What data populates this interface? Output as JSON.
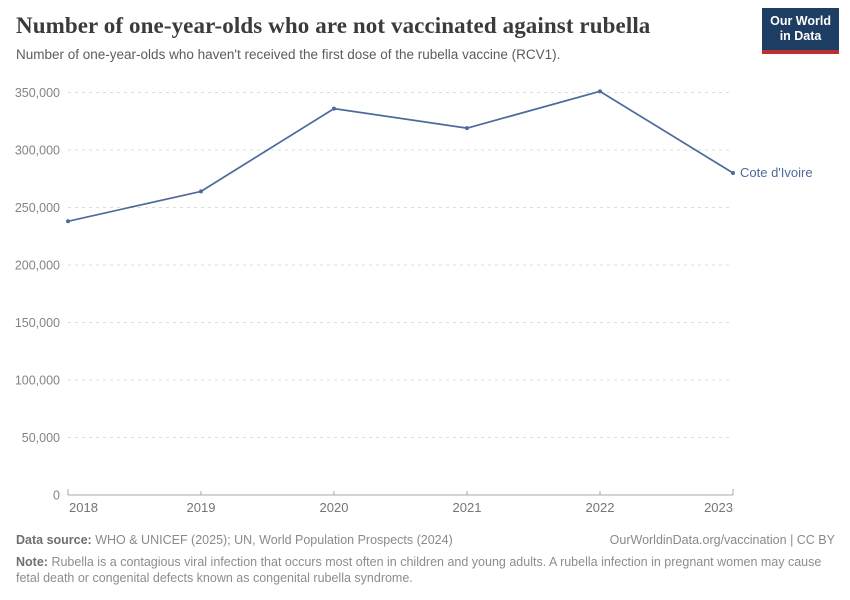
{
  "header": {
    "title": "Number of one-year-olds who are not vaccinated against rubella",
    "subtitle": "Number of one-year-olds who haven't received the first dose of the rubella vaccine (RCV1)."
  },
  "logo": {
    "line1": "Our World",
    "line2": "in Data",
    "bg_color": "#1d3d63",
    "accent_color": "#be2f33"
  },
  "chart_data": {
    "type": "line",
    "title": "Number of one-year-olds who are not vaccinated against rubella",
    "x": [
      2018,
      2019,
      2020,
      2021,
      2022,
      2023
    ],
    "series": [
      {
        "name": "Cote d'Ivoire",
        "values": [
          238000,
          264000,
          336000,
          319000,
          351000,
          280000
        ]
      }
    ],
    "yticks": [
      0,
      50000,
      100000,
      150000,
      200000,
      250000,
      300000,
      350000
    ],
    "ylim": [
      0,
      350000
    ],
    "xlabel": "",
    "ylabel": "",
    "grid": "horizontal-dashed",
    "legend_position": "end-of-line-label",
    "colors": {
      "line": "#4C6A9C",
      "grid": "#dcdcdc",
      "axis": "#a8a8a8"
    }
  },
  "footer": {
    "datasource_label": "Data source:",
    "datasource_text": "WHO & UNICEF (2025); UN, World Population Prospects (2024)",
    "credit": "OurWorldinData.org/vaccination | CC BY",
    "note_label": "Note:",
    "note_text": "Rubella is a contagious viral infection that occurs most often in children and young adults. A rubella infection in pregnant women may cause fetal death or congenital defects known as congenital rubella syndrome."
  }
}
